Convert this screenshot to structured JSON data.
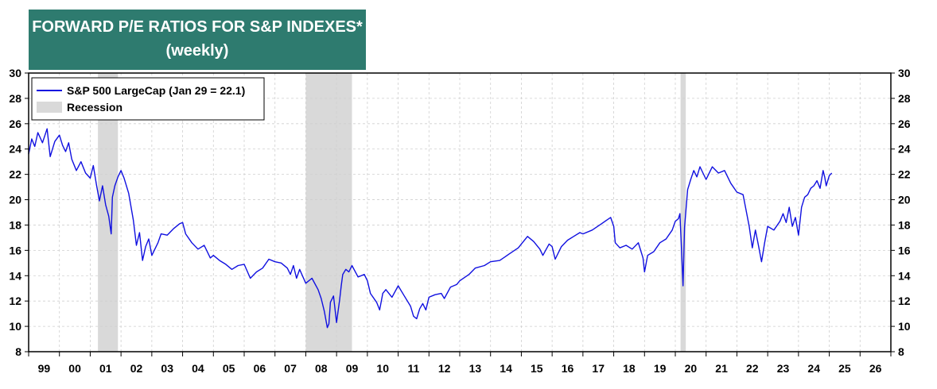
{
  "chart_data": {
    "type": "line",
    "title": "FORWARD P/E RATIOS FOR S&P INDEXES*",
    "subtitle": "(weekly)",
    "xlabel": "",
    "ylabel": "",
    "ylim": [
      8,
      30
    ],
    "y_ticks": [
      "8",
      "10",
      "12",
      "14",
      "16",
      "18",
      "20",
      "22",
      "24",
      "26",
      "28",
      "30"
    ],
    "xlim": [
      1999,
      2027
    ],
    "x_ticks": [
      "99",
      "00",
      "01",
      "02",
      "03",
      "04",
      "05",
      "06",
      "07",
      "08",
      "09",
      "10",
      "11",
      "12",
      "13",
      "14",
      "15",
      "16",
      "17",
      "18",
      "19",
      "20",
      "21",
      "22",
      "23",
      "24",
      "25",
      "26"
    ],
    "legend_position": "top-left",
    "grid": true,
    "colors": {
      "line": "#1010e0",
      "recession": "#d9d9d9",
      "title_bg": "#2e7b6f"
    },
    "series": [
      {
        "name": "S&P 500 LargeCap (Jan 29 = 22.1)",
        "x": [
          1999.0,
          1999.1,
          1999.2,
          1999.3,
          1999.45,
          1999.6,
          1999.7,
          1999.85,
          2000.0,
          2000.1,
          2000.2,
          2000.3,
          2000.4,
          2000.55,
          2000.7,
          2000.85,
          2001.0,
          2001.1,
          2001.2,
          2001.3,
          2001.4,
          2001.5,
          2001.6,
          2001.68,
          2001.72,
          2001.8,
          2001.9,
          2002.0,
          2002.1,
          2002.25,
          2002.4,
          2002.5,
          2002.6,
          2002.7,
          2002.8,
          2002.9,
          2003.0,
          2003.1,
          2003.2,
          2003.3,
          2003.5,
          2003.7,
          2003.9,
          2004.0,
          2004.1,
          2004.3,
          2004.5,
          2004.7,
          2004.9,
          2005.0,
          2005.2,
          2005.4,
          2005.6,
          2005.8,
          2006.0,
          2006.2,
          2006.4,
          2006.6,
          2006.8,
          2007.0,
          2007.2,
          2007.4,
          2007.5,
          2007.6,
          2007.7,
          2007.8,
          2008.0,
          2008.2,
          2008.4,
          2008.5,
          2008.6,
          2008.7,
          2008.75,
          2008.8,
          2008.9,
          2009.0,
          2009.1,
          2009.15,
          2009.2,
          2009.3,
          2009.4,
          2009.5,
          2009.7,
          2009.9,
          2010.0,
          2010.1,
          2010.3,
          2010.4,
          2010.5,
          2010.6,
          2010.8,
          2011.0,
          2011.2,
          2011.4,
          2011.5,
          2011.6,
          2011.7,
          2011.8,
          2011.9,
          2012.0,
          2012.2,
          2012.4,
          2012.5,
          2012.7,
          2012.9,
          2013.0,
          2013.3,
          2013.5,
          2013.8,
          2014.0,
          2014.3,
          2014.6,
          2014.9,
          2015.0,
          2015.2,
          2015.4,
          2015.6,
          2015.7,
          2015.9,
          2016.0,
          2016.1,
          2016.3,
          2016.5,
          2016.7,
          2016.9,
          2017.0,
          2017.3,
          2017.6,
          2017.9,
          2018.0,
          2018.05,
          2018.2,
          2018.4,
          2018.6,
          2018.8,
          2018.95,
          2019.0,
          2019.1,
          2019.3,
          2019.5,
          2019.7,
          2019.9,
          2020.0,
          2020.1,
          2020.15,
          2020.2,
          2020.25,
          2020.3,
          2020.4,
          2020.5,
          2020.6,
          2020.7,
          2020.8,
          2020.9,
          2021.0,
          2021.2,
          2021.4,
          2021.6,
          2021.8,
          2022.0,
          2022.2,
          2022.4,
          2022.5,
          2022.6,
          2022.7,
          2022.8,
          2022.9,
          2023.0,
          2023.2,
          2023.4,
          2023.5,
          2023.6,
          2023.7,
          2023.8,
          2023.9,
          2024.0,
          2024.1,
          2024.2,
          2024.3,
          2024.4,
          2024.5,
          2024.6,
          2024.7,
          2024.75,
          2024.8,
          2024.85,
          2024.9,
          2025.0,
          2025.08
        ],
        "values": [
          23.6,
          24.8,
          24.2,
          25.3,
          24.5,
          25.6,
          23.4,
          24.6,
          25.1,
          24.3,
          23.8,
          24.5,
          23.2,
          22.3,
          23.0,
          22.1,
          21.7,
          22.7,
          21.2,
          19.9,
          21.1,
          19.6,
          18.7,
          17.3,
          20.2,
          21.1,
          21.8,
          22.3,
          21.7,
          20.5,
          18.4,
          16.4,
          17.4,
          15.2,
          16.3,
          16.9,
          15.6,
          16.1,
          16.6,
          17.3,
          17.2,
          17.7,
          18.1,
          18.2,
          17.3,
          16.6,
          16.1,
          16.4,
          15.4,
          15.6,
          15.2,
          14.9,
          14.5,
          14.8,
          14.9,
          13.8,
          14.3,
          14.6,
          15.3,
          15.1,
          15.0,
          14.6,
          14.1,
          14.8,
          13.8,
          14.5,
          13.4,
          13.8,
          12.9,
          12.2,
          11.2,
          9.9,
          10.2,
          11.9,
          12.4,
          10.3,
          12.1,
          13.2,
          14.1,
          14.5,
          14.3,
          14.8,
          13.9,
          14.1,
          13.6,
          12.6,
          11.9,
          11.3,
          12.6,
          12.9,
          12.3,
          13.2,
          12.4,
          11.6,
          10.8,
          10.6,
          11.4,
          11.8,
          11.3,
          12.3,
          12.5,
          12.6,
          12.2,
          13.1,
          13.3,
          13.6,
          14.1,
          14.6,
          14.8,
          15.1,
          15.2,
          15.7,
          16.2,
          16.5,
          17.1,
          16.7,
          16.1,
          15.6,
          16.5,
          16.3,
          15.3,
          16.3,
          16.8,
          17.1,
          17.4,
          17.3,
          17.6,
          18.1,
          18.6,
          17.9,
          16.6,
          16.2,
          16.4,
          16.1,
          16.6,
          15.4,
          14.3,
          15.6,
          15.9,
          16.6,
          16.9,
          17.6,
          18.3,
          18.5,
          18.9,
          16.2,
          13.2,
          17.8,
          20.8,
          21.6,
          22.3,
          21.8,
          22.6,
          22.1,
          21.6,
          22.6,
          22.1,
          22.3,
          21.3,
          20.6,
          20.4,
          17.9,
          16.2,
          17.6,
          16.4,
          15.1,
          16.6,
          17.9,
          17.6,
          18.3,
          18.9,
          18.2,
          19.4,
          17.9,
          18.6,
          17.2,
          19.4,
          20.2,
          20.4,
          20.9,
          21.1,
          21.5,
          20.9,
          21.6,
          22.3,
          21.8,
          21.1,
          21.9,
          22.1
        ]
      }
    ],
    "recessions": [
      {
        "name": "Recession",
        "start": 2001.25,
        "end": 2001.9
      },
      {
        "name": "Recession",
        "start": 2008.0,
        "end": 2009.5
      },
      {
        "name": "Recession",
        "start": 2020.17,
        "end": 2020.34
      }
    ],
    "legend": [
      {
        "label": "S&P 500 LargeCap (Jan 29 = 22.1)",
        "kind": "line"
      },
      {
        "label": "Recession",
        "kind": "patch"
      }
    ]
  }
}
